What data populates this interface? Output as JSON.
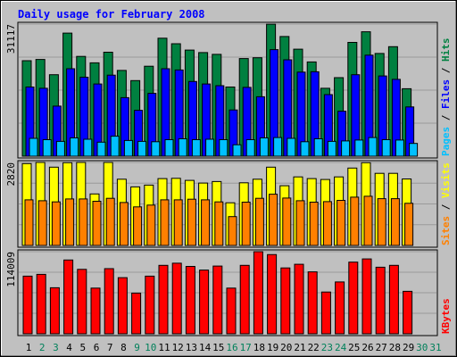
{
  "chart_data": {
    "type": "bar",
    "title": "Daily usage for February 2008",
    "categories": [
      "1",
      "2",
      "3",
      "4",
      "5",
      "6",
      "7",
      "8",
      "9",
      "10",
      "11",
      "12",
      "13",
      "14",
      "15",
      "16",
      "17",
      "18",
      "19",
      "20",
      "21",
      "22",
      "23",
      "24",
      "25",
      "26",
      "27",
      "28",
      "29",
      "30",
      "31"
    ],
    "weekend_days": [
      2,
      3,
      9,
      10,
      16,
      17,
      23,
      24,
      30,
      31
    ],
    "panels": [
      {
        "id": "hits",
        "scale_label": "31117",
        "ymax": 31117,
        "series": [
          {
            "name": "Hits",
            "color": "#008040",
            "values": [
              22500,
              22800,
              19200,
              29000,
              23500,
              22000,
              24500,
              20200,
              17800,
              21200,
              27800,
              26500,
              25000,
              24400,
              24000,
              16300,
              23000,
              23200,
              31100,
              28200,
              25200,
              22200,
              16000,
              18500,
              26800,
              29300,
              24200,
              25800,
              15900,
              null,
              null
            ]
          },
          {
            "name": "Files",
            "color": "#0000ff",
            "values": [
              16300,
              16000,
              11800,
              20600,
              18600,
              17000,
              19100,
              13800,
              10800,
              14800,
              20600,
              20300,
              17600,
              17000,
              16600,
              10900,
              16200,
              14000,
              25100,
              22700,
              19800,
              19900,
              14500,
              10600,
              19200,
              23800,
              18900,
              18100,
              11600,
              null,
              null
            ]
          },
          {
            "name": "Pages",
            "color": "#00c0ff",
            "values": [
              4200,
              3900,
              3500,
              4300,
              4000,
              3300,
              4700,
              3700,
              3500,
              3400,
              3900,
              4100,
              3900,
              4000,
              3900,
              2700,
              3900,
              4300,
              4400,
              4200,
              3400,
              4100,
              3500,
              3600,
              3800,
              4400,
              3900,
              3800,
              3000,
              null,
              null
            ]
          }
        ]
      },
      {
        "id": "visits",
        "scale_label": "2820",
        "ymax": 2820,
        "series": [
          {
            "name": "Visits",
            "color": "#ffff00",
            "values": [
              2780,
              2820,
              2660,
              2810,
              2820,
              1750,
              2820,
              2250,
              1990,
              2050,
              2270,
              2280,
              2210,
              2120,
              2170,
              1450,
              2130,
              2250,
              2660,
              2030,
              2330,
              2270,
              2240,
              2330,
              2630,
              2810,
              2450,
              2450,
              2260,
              null,
              null
            ]
          },
          {
            "name": "Sites",
            "color": "#ff8000",
            "values": [
              1550,
              1520,
              1480,
              1580,
              1580,
              1500,
              1600,
              1460,
              1310,
              1370,
              1550,
              1550,
              1570,
              1550,
              1480,
              980,
              1470,
              1600,
              1740,
              1610,
              1520,
              1470,
              1490,
              1530,
              1640,
              1670,
              1590,
              1590,
              1430,
              null,
              null
            ]
          }
        ]
      },
      {
        "id": "kbytes",
        "scale_label": "114009",
        "ymax": 114009,
        "series": [
          {
            "name": "KBytes",
            "color": "#ff0000",
            "values": [
              80000,
              82500,
              64000,
              102500,
              89500,
              63500,
              90500,
              78000,
              56500,
              80000,
              95000,
              98000,
              93500,
              88500,
              94000,
              63500,
              95000,
              114000,
              110000,
              91500,
              96500,
              86000,
              58000,
              72000,
              99500,
              104000,
              92500,
              95000,
              59000,
              null,
              null
            ]
          }
        ]
      }
    ]
  }
}
